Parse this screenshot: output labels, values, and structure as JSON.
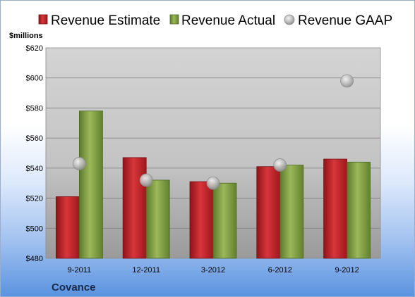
{
  "company": "Covance",
  "colors": {
    "estimate": "#c0282c",
    "actual": "#7e9a3f",
    "gaap": "#b8b8b8"
  },
  "chart_data": {
    "type": "bar",
    "title": "",
    "ylabel": "$millions",
    "xlabel": "",
    "categories": [
      "9-2011",
      "12-2011",
      "3-2012",
      "6-2012",
      "9-2012"
    ],
    "series": [
      {
        "name": "Revenue Estimate",
        "kind": "bar",
        "values": [
          521,
          547,
          531,
          541,
          546
        ]
      },
      {
        "name": "Revenue Actual",
        "kind": "bar",
        "values": [
          578,
          532,
          530,
          542,
          544
        ]
      },
      {
        "name": "Revenue GAAP",
        "kind": "marker",
        "values": [
          543,
          532,
          530,
          542,
          598
        ]
      }
    ],
    "ylim": [
      480,
      620
    ],
    "ytick_labels": [
      "$480",
      "$500",
      "$520",
      "$540",
      "$560",
      "$580",
      "$600",
      "$620"
    ],
    "ytick_values": [
      480,
      500,
      520,
      540,
      560,
      580,
      600,
      620
    ],
    "grid": true,
    "legend_position": "top"
  }
}
